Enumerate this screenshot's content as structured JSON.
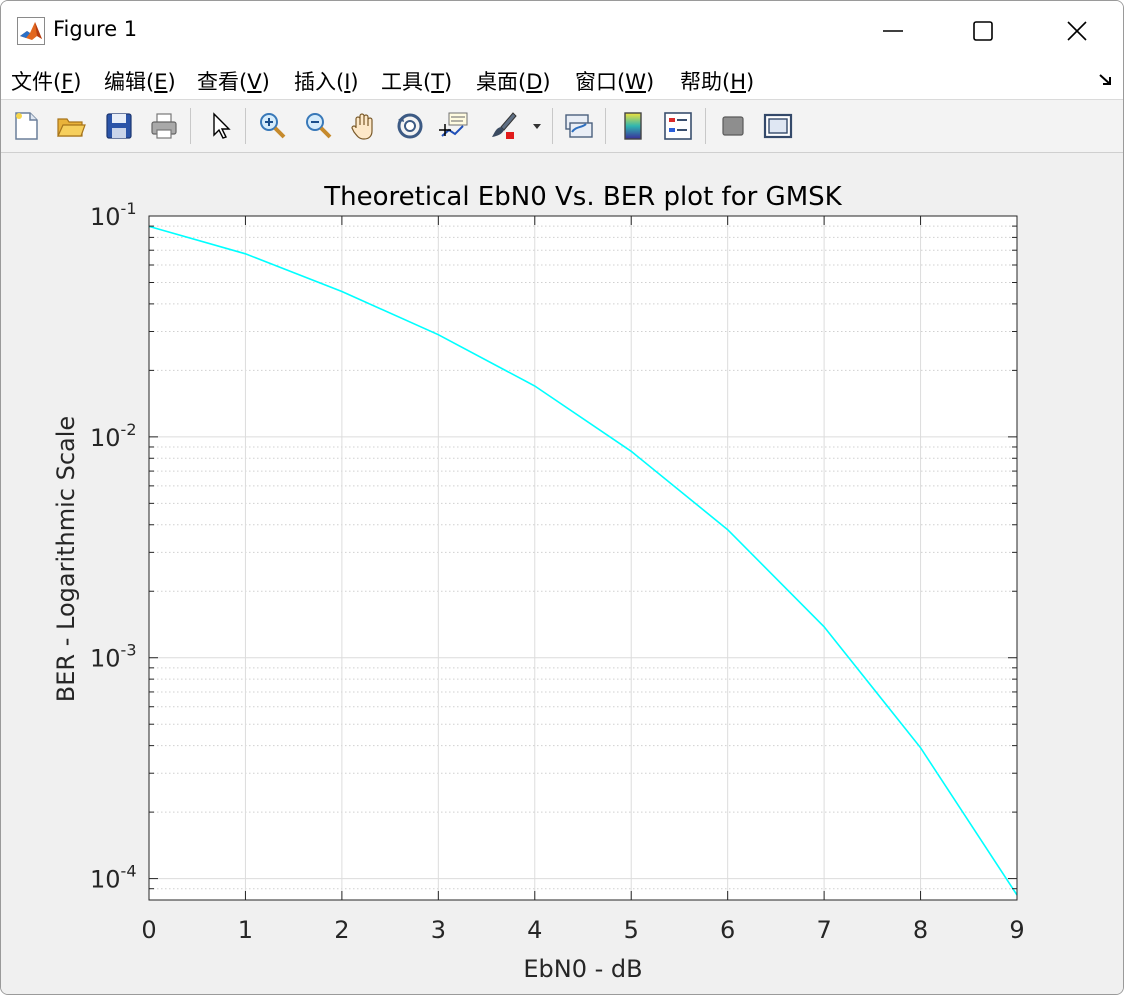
{
  "window": {
    "title": "Figure 1",
    "controls": {
      "minimize": "minimize",
      "maximize": "maximize",
      "close": "close"
    }
  },
  "menu": [
    {
      "label": "文件(",
      "key": "F",
      "tail": ")"
    },
    {
      "label": "编辑(",
      "key": "E",
      "tail": ")"
    },
    {
      "label": "查看(",
      "key": "V",
      "tail": ")"
    },
    {
      "label": "插入(",
      "key": "I",
      "tail": ")"
    },
    {
      "label": "工具(",
      "key": "T",
      "tail": ")"
    },
    {
      "label": "桌面(",
      "key": "D",
      "tail": ")"
    },
    {
      "label": "窗口(",
      "key": "W",
      "tail": ")"
    },
    {
      "label": "帮助(",
      "key": "H",
      "tail": ")"
    }
  ],
  "toolbar": {
    "icons": [
      "new-figure-icon",
      "open-file-icon",
      "save-icon",
      "print-icon",
      "select-arrow-icon",
      "zoom-in-icon",
      "zoom-out-icon",
      "pan-hand-icon",
      "rotate-3d-icon",
      "data-cursor-icon",
      "brush-icon",
      "brush-dropdown-icon",
      "link-plot-icon",
      "colorbar-icon",
      "legend-icon",
      "hide-plot-tools-icon",
      "show-plot-tools-icon"
    ]
  },
  "chart_data": {
    "type": "line",
    "title": "Theoretical EbN0 Vs. BER plot for GMSK",
    "xlabel": "EbN0 - dB",
    "ylabel": "BER - Logarithmic Scale",
    "xlim": [
      0,
      9
    ],
    "ylim": [
      8e-05,
      0.1
    ],
    "y_scale": "log",
    "grid": true,
    "minor_grid_y": true,
    "x_ticks": [
      "0",
      "1",
      "2",
      "3",
      "4",
      "5",
      "6",
      "7",
      "8",
      "9"
    ],
    "y_ticks": [
      {
        "base": "10",
        "exp": "-1",
        "value": 0.1
      },
      {
        "base": "10",
        "exp": "-2",
        "value": 0.01
      },
      {
        "base": "10",
        "exp": "-3",
        "value": 0.001
      },
      {
        "base": "10",
        "exp": "-4",
        "value": 0.0001
      }
    ],
    "line_color": "#00ffff",
    "series": [
      {
        "x": [
          0,
          1,
          2,
          3,
          4,
          5,
          6,
          7,
          8,
          9
        ],
        "values": [
          0.0897,
          0.0674,
          0.0455,
          0.029,
          0.017,
          0.0086,
          0.0038,
          0.00138,
          0.000391,
          8.43e-05
        ]
      }
    ]
  }
}
